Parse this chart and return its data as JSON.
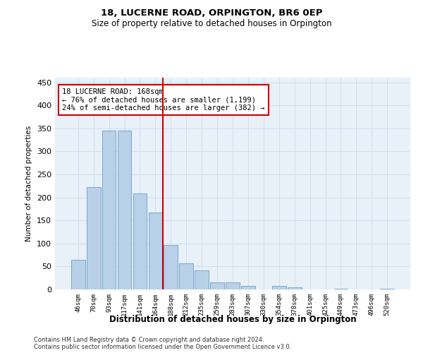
{
  "title1": "18, LUCERNE ROAD, ORPINGTON, BR6 0EP",
  "title2": "Size of property relative to detached houses in Orpington",
  "xlabel": "Distribution of detached houses by size in Orpington",
  "ylabel": "Number of detached properties",
  "bar_labels": [
    "46sqm",
    "70sqm",
    "93sqm",
    "117sqm",
    "141sqm",
    "164sqm",
    "188sqm",
    "212sqm",
    "235sqm",
    "259sqm",
    "283sqm",
    "307sqm",
    "330sqm",
    "354sqm",
    "378sqm",
    "401sqm",
    "425sqm",
    "449sqm",
    "473sqm",
    "496sqm",
    "520sqm"
  ],
  "bar_values": [
    65,
    222,
    345,
    345,
    209,
    167,
    97,
    57,
    41,
    16,
    16,
    7,
    0,
    7,
    4,
    0,
    0,
    2,
    0,
    0,
    1
  ],
  "bar_color": "#b8d0e8",
  "bar_edge_color": "#6a9fc8",
  "grid_color": "#d0dff0",
  "bg_color": "#e8f0f8",
  "red_line_index": 5,
  "red_line_color": "#cc0000",
  "annotation_line1": "18 LUCERNE ROAD: 168sqm",
  "annotation_line2": "← 76% of detached houses are smaller (1,199)",
  "annotation_line3": "24% of semi-detached houses are larger (382) →",
  "annotation_box_color": "#ffffff",
  "annotation_box_edge": "#cc0000",
  "ylim": [
    0,
    460
  ],
  "yticks": [
    0,
    50,
    100,
    150,
    200,
    250,
    300,
    350,
    400,
    450
  ],
  "footnote1": "Contains HM Land Registry data © Crown copyright and database right 2024.",
  "footnote2": "Contains public sector information licensed under the Open Government Licence v3.0."
}
